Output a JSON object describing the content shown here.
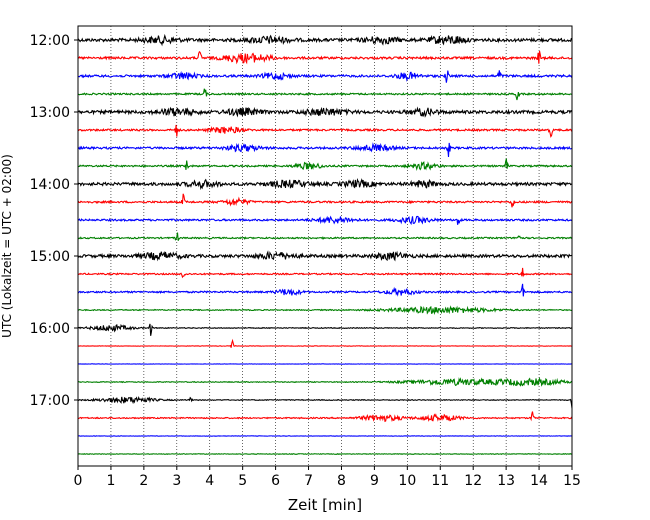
{
  "chart_data": {
    "type": "line",
    "title": "",
    "xlabel": "Zeit  [min]",
    "ylabel": "UTC (Lokalzeit = UTC + 02:00)",
    "xlim": [
      0,
      15
    ],
    "x_ticks": [
      "0",
      "1",
      "2",
      "3",
      "4",
      "5",
      "6",
      "7",
      "8",
      "9",
      "10",
      "11",
      "12",
      "13",
      "14",
      "15"
    ],
    "y_ticks": [
      "12:00",
      "13:00",
      "14:00",
      "15:00",
      "16:00",
      "17:00"
    ],
    "grid": "vertical dotted lines at each minute",
    "colors": {
      "black": "#000000",
      "red": "#ff0000",
      "blue": "#0000ff",
      "green": "#008000"
    },
    "traces": [
      {
        "start": "12:00",
        "color": "black",
        "amplitude": 0.3,
        "bursts": [
          [
            2.5,
            0.5
          ],
          [
            5.8,
            0.6
          ],
          [
            9.2,
            0.5
          ],
          [
            11.0,
            0.35
          ],
          [
            11.5,
            0.3
          ]
        ],
        "spikes": []
      },
      {
        "start": "12:15",
        "color": "red",
        "amplitude": 0.22,
        "bursts": [
          [
            4.8,
            0.45
          ],
          [
            5.4,
            0.5
          ]
        ],
        "spikes": [
          3.7,
          14.0
        ]
      },
      {
        "start": "12:30",
        "color": "blue",
        "amplitude": 0.22,
        "bursts": [
          [
            3.2,
            0.4
          ],
          [
            6.0,
            0.4
          ],
          [
            10.0,
            0.35
          ]
        ],
        "spikes": [
          11.2,
          12.8
        ]
      },
      {
        "start": "12:45",
        "color": "green",
        "amplitude": 0.16,
        "bursts": [],
        "spikes": [
          3.85,
          13.35
        ]
      },
      {
        "start": "13:00",
        "color": "black",
        "amplitude": 0.3,
        "bursts": [
          [
            3.0,
            0.55
          ],
          [
            5.0,
            0.5
          ],
          [
            7.5,
            0.6
          ],
          [
            10.5,
            0.4
          ]
        ],
        "spikes": []
      },
      {
        "start": "13:15",
        "color": "red",
        "amplitude": 0.18,
        "bursts": [
          [
            4.5,
            0.45
          ]
        ],
        "spikes": [
          3.0,
          14.35
        ]
      },
      {
        "start": "13:30",
        "color": "blue",
        "amplitude": 0.2,
        "bursts": [
          [
            5.0,
            0.5
          ],
          [
            9.0,
            0.5
          ]
        ],
        "spikes": [
          11.25
        ]
      },
      {
        "start": "13:45",
        "color": "green",
        "amplitude": 0.16,
        "bursts": [
          [
            7.0,
            0.4
          ],
          [
            10.5,
            0.4
          ]
        ],
        "spikes": [
          3.3,
          13.0
        ]
      },
      {
        "start": "14:00",
        "color": "black",
        "amplitude": 0.28,
        "bursts": [
          [
            3.8,
            0.45
          ],
          [
            6.4,
            0.6
          ],
          [
            8.5,
            0.45
          ],
          [
            10.5,
            0.35
          ]
        ],
        "spikes": []
      },
      {
        "start": "14:15",
        "color": "red",
        "amplitude": 0.18,
        "bursts": [
          [
            4.8,
            0.35
          ]
        ],
        "spikes": [
          3.2,
          13.2
        ]
      },
      {
        "start": "14:30",
        "color": "blue",
        "amplitude": 0.18,
        "bursts": [
          [
            7.8,
            0.55
          ],
          [
            10.2,
            0.5
          ]
        ],
        "spikes": [
          11.55
        ]
      },
      {
        "start": "14:45",
        "color": "green",
        "amplitude": 0.14,
        "bursts": [],
        "spikes": [
          3.0,
          13.4
        ]
      },
      {
        "start": "15:00",
        "color": "black",
        "amplitude": 0.28,
        "bursts": [
          [
            2.5,
            0.6
          ],
          [
            6.0,
            0.55
          ],
          [
            9.5,
            0.5
          ]
        ],
        "spikes": []
      },
      {
        "start": "15:15",
        "color": "red",
        "amplitude": 0.14,
        "bursts": [],
        "spikes": [
          3.2,
          13.5
        ]
      },
      {
        "start": "15:30",
        "color": "blue",
        "amplitude": 0.16,
        "bursts": [
          [
            6.4,
            0.35
          ],
          [
            9.8,
            0.45
          ]
        ],
        "spikes": [
          13.5
        ]
      },
      {
        "start": "15:45",
        "color": "green",
        "amplitude": 0.1,
        "bursts": [
          [
            11.0,
            1.5
          ]
        ],
        "spikes": []
      },
      {
        "start": "16:00",
        "color": "black",
        "amplitude": 0.08,
        "bursts": [
          [
            1.0,
            0.6
          ]
        ],
        "spikes": [
          2.2
        ]
      },
      {
        "start": "16:15",
        "color": "red",
        "amplitude": 0.04,
        "bursts": [],
        "spikes": [
          4.7
        ]
      },
      {
        "start": "16:30",
        "color": "blue",
        "amplitude": 0.03,
        "bursts": [],
        "spikes": []
      },
      {
        "start": "16:45",
        "color": "green",
        "amplitude": 0.08,
        "bursts": [
          [
            11.5,
            1.5
          ],
          [
            13.8,
            1.0
          ]
        ],
        "spikes": []
      },
      {
        "start": "17:00",
        "color": "black",
        "amplitude": 0.08,
        "bursts": [
          [
            1.5,
            0.8
          ]
        ],
        "spikes": [
          3.4,
          15.0
        ]
      },
      {
        "start": "17:15",
        "color": "red",
        "amplitude": 0.12,
        "bursts": [
          [
            9.2,
            0.6
          ],
          [
            11.0,
            0.6
          ]
        ],
        "spikes": [
          13.8
        ]
      },
      {
        "start": "17:30",
        "color": "blue",
        "amplitude": 0.04,
        "bursts": [],
        "spikes": []
      },
      {
        "start": "17:45",
        "color": "green",
        "amplitude": 0.06,
        "bursts": [],
        "spikes": []
      }
    ]
  }
}
